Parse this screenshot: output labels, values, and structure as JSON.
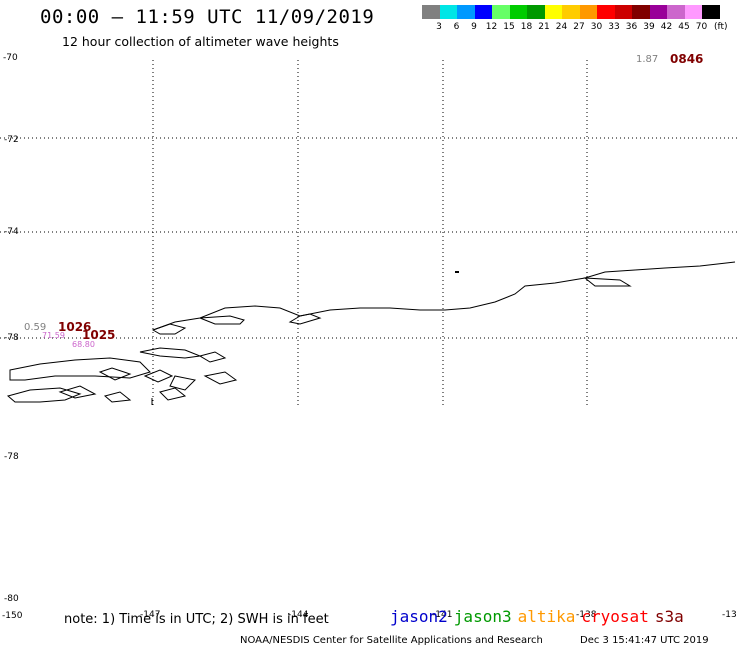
{
  "header": {
    "title": "00:00 — 11:59 UTC 11/09/2019",
    "subtitle": "12 hour collection of altimeter wave heights"
  },
  "legend": {
    "unit": "(ft)",
    "items": [
      {
        "color": "#808080",
        "label": "3"
      },
      {
        "color": "#00e6e6",
        "label": "6"
      },
      {
        "color": "#0099ff",
        "label": "9"
      },
      {
        "color": "#0000ff",
        "label": "12"
      },
      {
        "color": "#66ff66",
        "label": "15"
      },
      {
        "color": "#00cc00",
        "label": "18"
      },
      {
        "color": "#009900",
        "label": "21"
      },
      {
        "color": "#ffff00",
        "label": "24"
      },
      {
        "color": "#ffcc00",
        "label": "27"
      },
      {
        "color": "#ff9900",
        "label": "30"
      },
      {
        "color": "#ff0000",
        "label": "33"
      },
      {
        "color": "#cc0000",
        "label": "36"
      },
      {
        "color": "#800000",
        "label": "39"
      },
      {
        "color": "#990099",
        "label": "42"
      },
      {
        "color": "#cc66cc",
        "label": "45"
      },
      {
        "color": "#ff99ff",
        "label": "70"
      },
      {
        "color": "#000000",
        "label": ""
      }
    ]
  },
  "axes": {
    "lat_labels": [
      "-70",
      "-72",
      "-74",
      "-78",
      "-78",
      "-80"
    ],
    "lon_labels": [
      "-150",
      "-147",
      "-144",
      "-141",
      "-138",
      "-13"
    ]
  },
  "observations": [
    {
      "swh": "1.87",
      "time": "0846"
    },
    {
      "swh": "0.59",
      "time": "1026"
    },
    {
      "swh": "",
      "time": "1025"
    }
  ],
  "obs_small": [
    "71.59",
    "68.80"
  ],
  "footer": {
    "note": "note: 1) Time is in UTC; 2) SWH is in feet",
    "satellites": [
      {
        "name": "jason2",
        "color": "#0000cc"
      },
      {
        "name": "jason3",
        "color": "#009900"
      },
      {
        "name": "altika",
        "color": "#ff9900"
      },
      {
        "name": "cryosat",
        "color": "#ff0000"
      },
      {
        "name": "s3a",
        "color": "#800000"
      }
    ],
    "credit": "NOAA/NESDIS Center for Satellite Applications and Research",
    "timestamp": "Dec  3 15:41:47 UTC 2019"
  }
}
